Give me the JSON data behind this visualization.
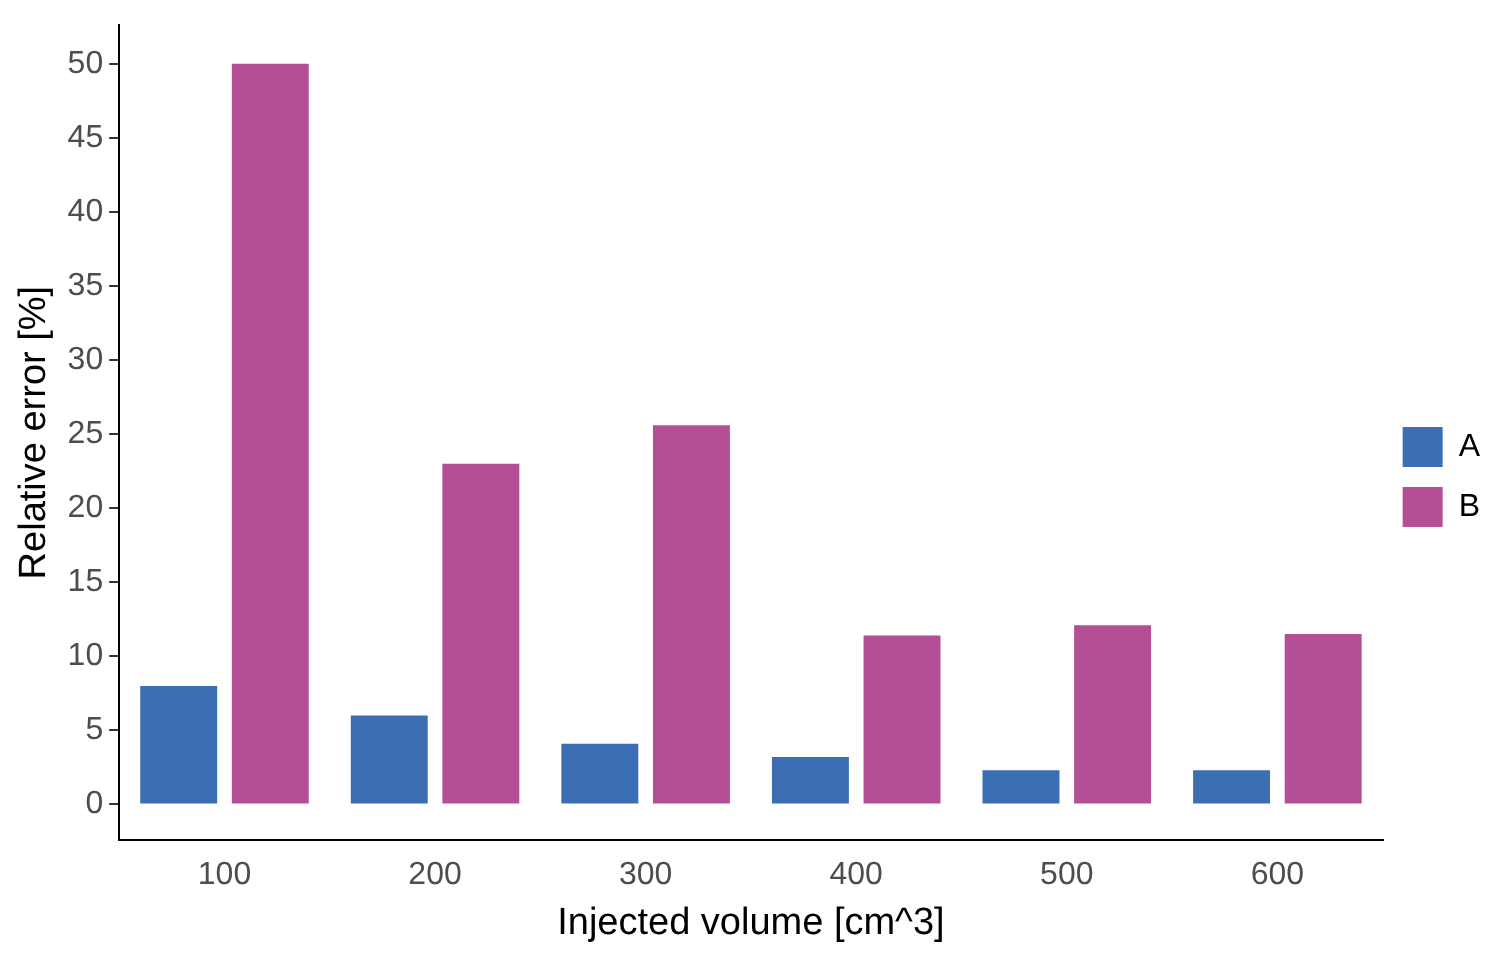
{
  "chart_data": {
    "type": "bar",
    "xlabel": "Injected volume [cm^3]",
    "ylabel": "Relative error [%]",
    "categories": [
      "100",
      "200",
      "300",
      "400",
      "500",
      "600"
    ],
    "series": [
      {
        "name": "A",
        "color": "#3c6eb4",
        "values": [
          8,
          6,
          4.1,
          3.2,
          2.3,
          2.3
        ]
      },
      {
        "name": "B",
        "color": "#b44e96",
        "values": [
          50,
          23,
          25.6,
          11.4,
          12.1,
          11.5
        ]
      }
    ],
    "ylim": [
      -2.4,
      52.6
    ],
    "yticks": [
      0,
      5,
      10,
      15,
      20,
      25,
      30,
      35,
      40,
      45,
      50
    ],
    "grid": false,
    "legend": "right"
  }
}
